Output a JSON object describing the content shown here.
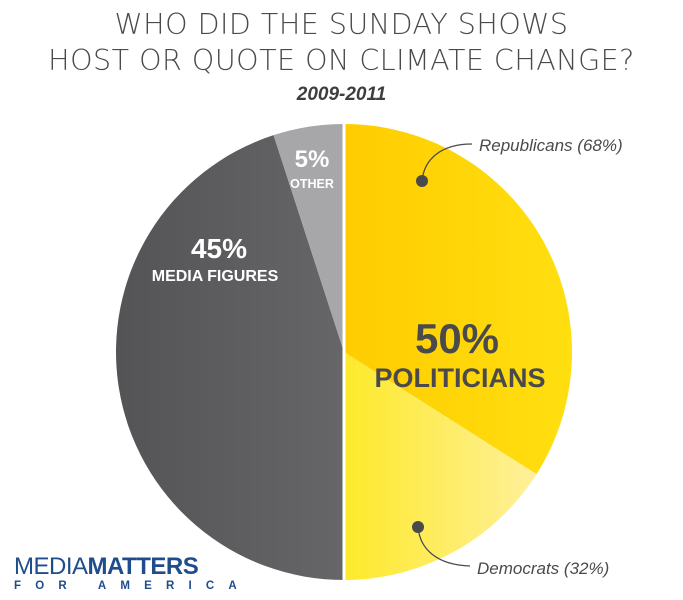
{
  "chart_data": {
    "type": "pie",
    "title": "WHO DID THE SUNDAY SHOWS HOST OR QUOTE ON CLIMATE CHANGE?",
    "title_lines": [
      "WHO DID THE SUNDAY SHOWS",
      "HOST OR QUOTE ON CLIMATE CHANGE?"
    ],
    "subtitle": "2009-2011",
    "slices": [
      {
        "name": "Politicians",
        "value": 50,
        "pct_label": "50%",
        "label": "POLITICIANS",
        "color": "#ffd200",
        "sub_slices": [
          {
            "name": "Republicans",
            "share_of_parent": 68,
            "label": "Republicans (68%)",
            "color": "#ffd200"
          },
          {
            "name": "Democrats",
            "share_of_parent": 32,
            "label": "Democrats (32%)",
            "color": "#fdec4a"
          }
        ]
      },
      {
        "name": "Media Figures",
        "value": 45,
        "pct_label": "45%",
        "label": "MEDIA FIGURES",
        "color": "#5c5c5e"
      },
      {
        "name": "Other",
        "value": 5,
        "pct_label": "5%",
        "label": "OTHER",
        "color": "#a7a7a9"
      }
    ]
  },
  "logo": {
    "line1_light": "MEDIA",
    "line1_bold": "MATTERS",
    "line2": "FOR AMERICA"
  }
}
